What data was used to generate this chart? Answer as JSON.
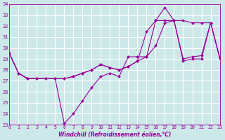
{
  "x": [
    0,
    1,
    2,
    3,
    4,
    5,
    6,
    7,
    8,
    9,
    10,
    11,
    12,
    13,
    14,
    15,
    16,
    17,
    18,
    19,
    20,
    21,
    22,
    23
  ],
  "line1": [
    29.5,
    27.7,
    27.2,
    27.2,
    27.2,
    27.2,
    23.1,
    24.0,
    25.2,
    26.4,
    27.4,
    27.7,
    27.4,
    29.2,
    29.2,
    29.2,
    32.5,
    33.7,
    32.5,
    28.8,
    29.0,
    29.0,
    32.3,
    29.1
  ],
  "line2": [
    29.5,
    27.7,
    27.2,
    27.2,
    27.2,
    27.2,
    27.2,
    27.4,
    27.7,
    28.0,
    28.5,
    28.2,
    28.0,
    28.3,
    28.8,
    29.2,
    30.2,
    32.3,
    32.5,
    32.5,
    32.3,
    32.3,
    32.3,
    29.1
  ],
  "line3": [
    29.5,
    27.7,
    27.2,
    27.2,
    27.2,
    27.2,
    27.2,
    27.4,
    27.7,
    28.0,
    28.5,
    28.2,
    28.0,
    28.3,
    28.8,
    31.5,
    32.5,
    32.5,
    32.5,
    29.0,
    29.2,
    29.3,
    32.3,
    29.1
  ],
  "line_color": "#990099",
  "bg_color": "#cce8e8",
  "grid_color": "#ffffff",
  "xlabel": "Windchill (Refroidissement éolien,°C)",
  "ylim_min": 23,
  "ylim_max": 34,
  "xlim_min": 0,
  "xlim_max": 23,
  "yticks": [
    23,
    24,
    25,
    26,
    27,
    28,
    29,
    30,
    31,
    32,
    33,
    34
  ],
  "xticks": [
    0,
    1,
    2,
    3,
    4,
    5,
    6,
    7,
    8,
    9,
    10,
    11,
    12,
    13,
    14,
    15,
    16,
    17,
    18,
    19,
    20,
    21,
    22,
    23
  ]
}
